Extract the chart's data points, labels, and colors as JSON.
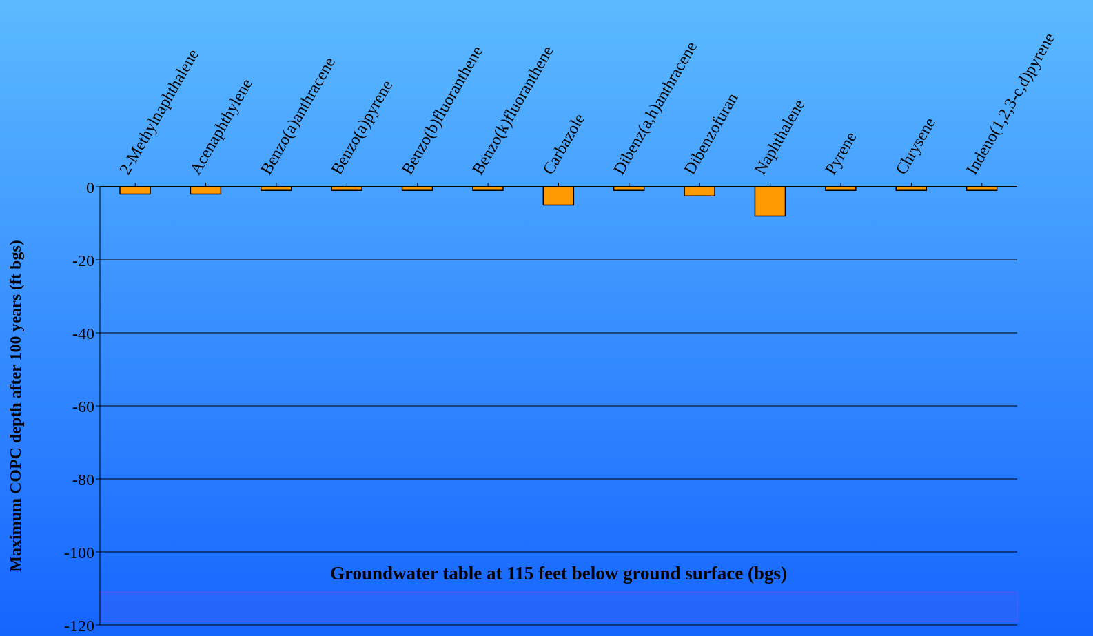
{
  "chart_data": {
    "type": "bar",
    "ylabel": "Maximum COPC depth after 100 years (ft bgs)",
    "categories": [
      "2-Methylnaphthalene",
      "Acenaphthylene",
      "Benzo(a)anthracene",
      "Benzo(a)pyrene",
      "Benzo(b)fluoranthene",
      "Benzo(k)fluoranthene",
      "Carbazole",
      "Dibenz(a,h)anthracene",
      "Dibenzofuran",
      "Naphthalene",
      "Pyrene",
      "Chrysene",
      "Indeno(1,2,3-c,d)pyrene"
    ],
    "values": [
      -2,
      -2,
      -1,
      -1,
      -1,
      -1,
      -5,
      -1,
      -2.5,
      -8,
      -1,
      -1,
      -1
    ],
    "color": "#ff9900",
    "ylim": [
      -120,
      0
    ],
    "yticks": [
      -120,
      -100,
      -80,
      -60,
      -40,
      -20,
      0
    ],
    "grid": "y",
    "bands": [
      {
        "axis": "y",
        "from": -119,
        "to": -111,
        "label": "Groundwater table at 115 feet below ground surface (bgs)",
        "color": "#4d5cf0"
      }
    ]
  }
}
